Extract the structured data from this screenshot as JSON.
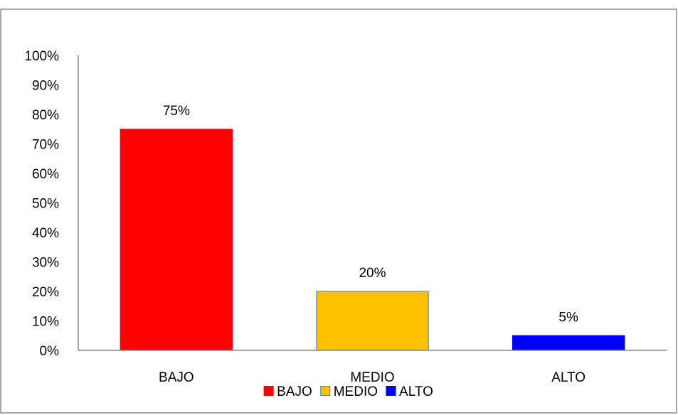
{
  "chart_data": {
    "type": "bar",
    "categories": [
      "BAJO",
      "MEDIO",
      "ALTO"
    ],
    "values": [
      75,
      20,
      5
    ],
    "data_labels": [
      "75%",
      "20%",
      "5%"
    ],
    "colors": [
      "#ff0000",
      "#ffc000",
      "#0000ff"
    ],
    "bar_border_colors": [
      "#ff0000",
      "#4a7ebb",
      "#0000ff"
    ],
    "ylim": [
      0,
      100
    ],
    "yticks": [
      "0%",
      "10%",
      "20%",
      "30%",
      "40%",
      "50%",
      "60%",
      "70%",
      "80%",
      "90%",
      "100%"
    ],
    "legend": [
      {
        "label": "BAJO",
        "color": "#ff0000"
      },
      {
        "label": "MEDIO",
        "color": "#ffc000"
      },
      {
        "label": "ALTO",
        "color": "#0000ff"
      }
    ],
    "legend_position": "bottom",
    "grid": false,
    "title": "",
    "xlabel": "",
    "ylabel": ""
  }
}
